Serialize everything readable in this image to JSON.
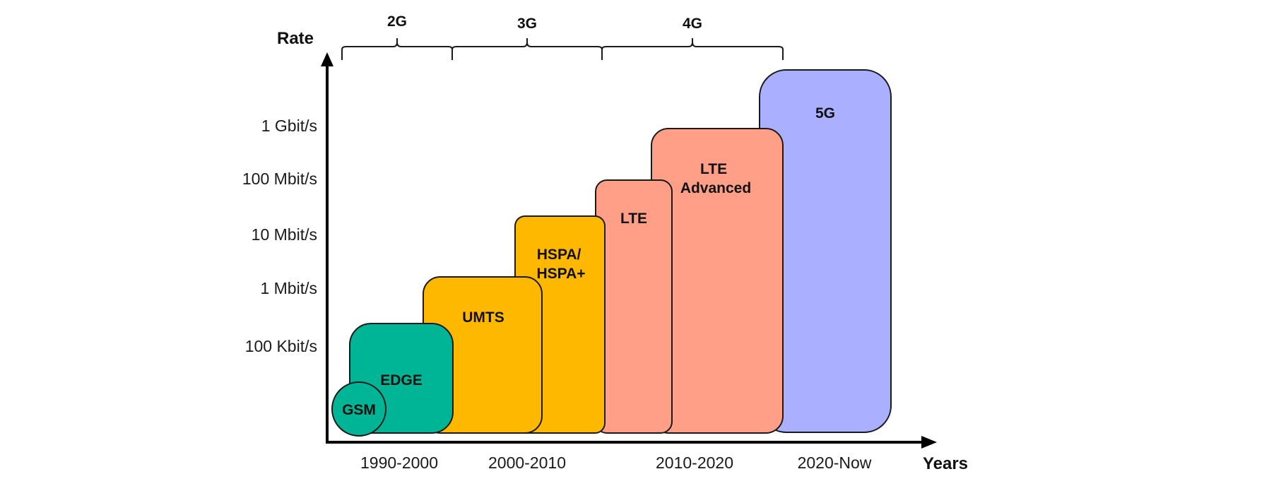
{
  "axes": {
    "y_title": "Rate",
    "x_title": "Years"
  },
  "rate_ticks": [
    "1 Gbit/s",
    "100 Mbit/s",
    "10 Mbit/s",
    "1 Mbit/s",
    "100 Kbit/s"
  ],
  "year_ticks": [
    "1990-2000",
    "2000-2010",
    "2010-2020",
    "2020-Now"
  ],
  "generations": [
    "2G",
    "3G",
    "4G"
  ],
  "technologies": [
    {
      "id": "5g",
      "label": "5G",
      "color": "#aab0ff"
    },
    {
      "id": "lte-advanced",
      "label": "LTE\nAdvanced",
      "color": "#ff9f88"
    },
    {
      "id": "lte",
      "label": "LTE",
      "color": "#ff9f88"
    },
    {
      "id": "hspa",
      "label": "HSPA/\nHSPA+",
      "color": "#ffb800"
    },
    {
      "id": "umts",
      "label": "UMTS",
      "color": "#ffb800"
    },
    {
      "id": "edge",
      "label": "EDGE",
      "color": "#00b596"
    },
    {
      "id": "gsm",
      "label": "GSM",
      "color": "#00b596"
    }
  ]
}
